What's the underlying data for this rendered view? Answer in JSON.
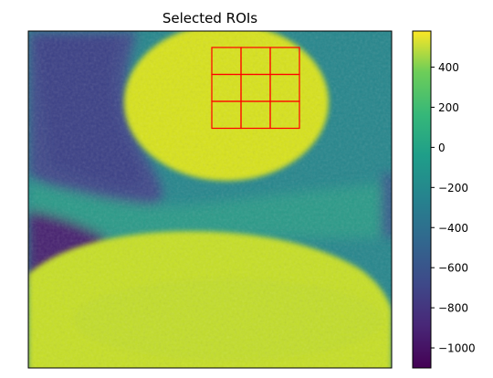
{
  "chart_data": {
    "type": "heatmap",
    "title": "Selected ROIs",
    "xlabel": "",
    "ylabel": "",
    "x_ticks_visible": false,
    "y_ticks_visible": false,
    "colormap": "viridis",
    "colorbar": {
      "range": [
        -1100,
        580
      ],
      "ticks": [
        400,
        200,
        0,
        -200,
        -400,
        -600,
        -800,
        -1000
      ],
      "tick_labels": [
        "400",
        "200",
        "0",
        "−200",
        "−400",
        "−600",
        "−800",
        "−1000"
      ],
      "placement": "right"
    },
    "image_description_regions": {
      "upper_right_circle_value": 480,
      "bottom_dome_value": 380,
      "left_dark_lobe_value": -950,
      "background_value": -80,
      "connective_band_value": 80
    },
    "roi_grid": {
      "rows": 3,
      "cols": 3,
      "color": "#ff0000"
    }
  }
}
